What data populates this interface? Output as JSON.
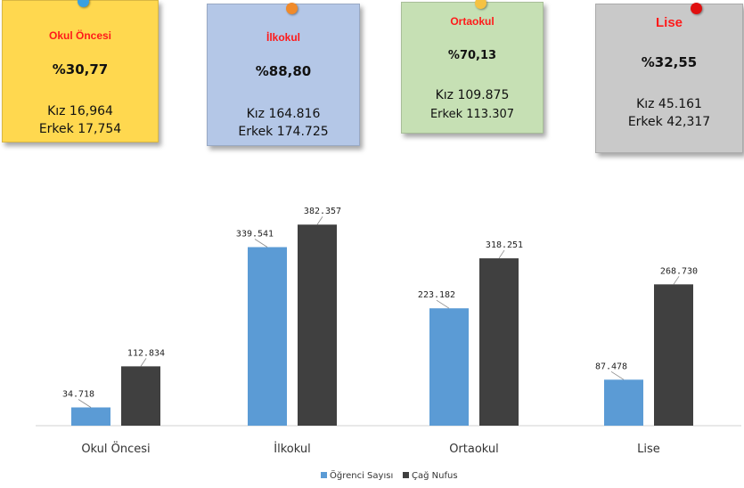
{
  "cards": [
    {
      "title": "Okul Öncesi",
      "percent": "%30,77",
      "girls": "Kız 16,964",
      "boys": "Erkek 17,754",
      "color": "#ffd84f",
      "pin_color": "#3aa0e0"
    },
    {
      "title": "İlkokul",
      "percent": "%88,80",
      "girls": "Kız 164.816",
      "boys": "Erkek 174.725",
      "color": "#b4c7e7",
      "pin_color": "#f08a2a"
    },
    {
      "title": "Ortaokul",
      "percent": "%70,13",
      "girls": "Kız 109.875",
      "boys": "Erkek 113.307",
      "color": "#c6e0b4",
      "pin_color": "#f5c242"
    },
    {
      "title": "Lise",
      "percent": "%32,55",
      "girls": "Kız 45.161",
      "boys": "Erkek 42,317",
      "color": "#c9c9c9",
      "pin_color": "#e01010"
    }
  ],
  "chart_data": {
    "type": "bar",
    "categories": [
      "Okul Öncesi",
      "İlkokul",
      "Ortaokul",
      "Lise"
    ],
    "series": [
      {
        "name": "Öğrenci Sayısı",
        "values": [
          34718,
          339541,
          223182,
          87478
        ],
        "labels": [
          "34.718",
          "339.541",
          "223.182",
          "87.478"
        ],
        "color": "#5b9bd5"
      },
      {
        "name": "Çağ Nufus",
        "values": [
          112834,
          382357,
          318251,
          268730
        ],
        "labels": [
          "112.834",
          "382.357",
          "318.251",
          "268.730"
        ],
        "color": "#404040"
      }
    ],
    "ylim": [
      0,
      420000
    ],
    "legend_position": "bottom",
    "grid": false
  }
}
